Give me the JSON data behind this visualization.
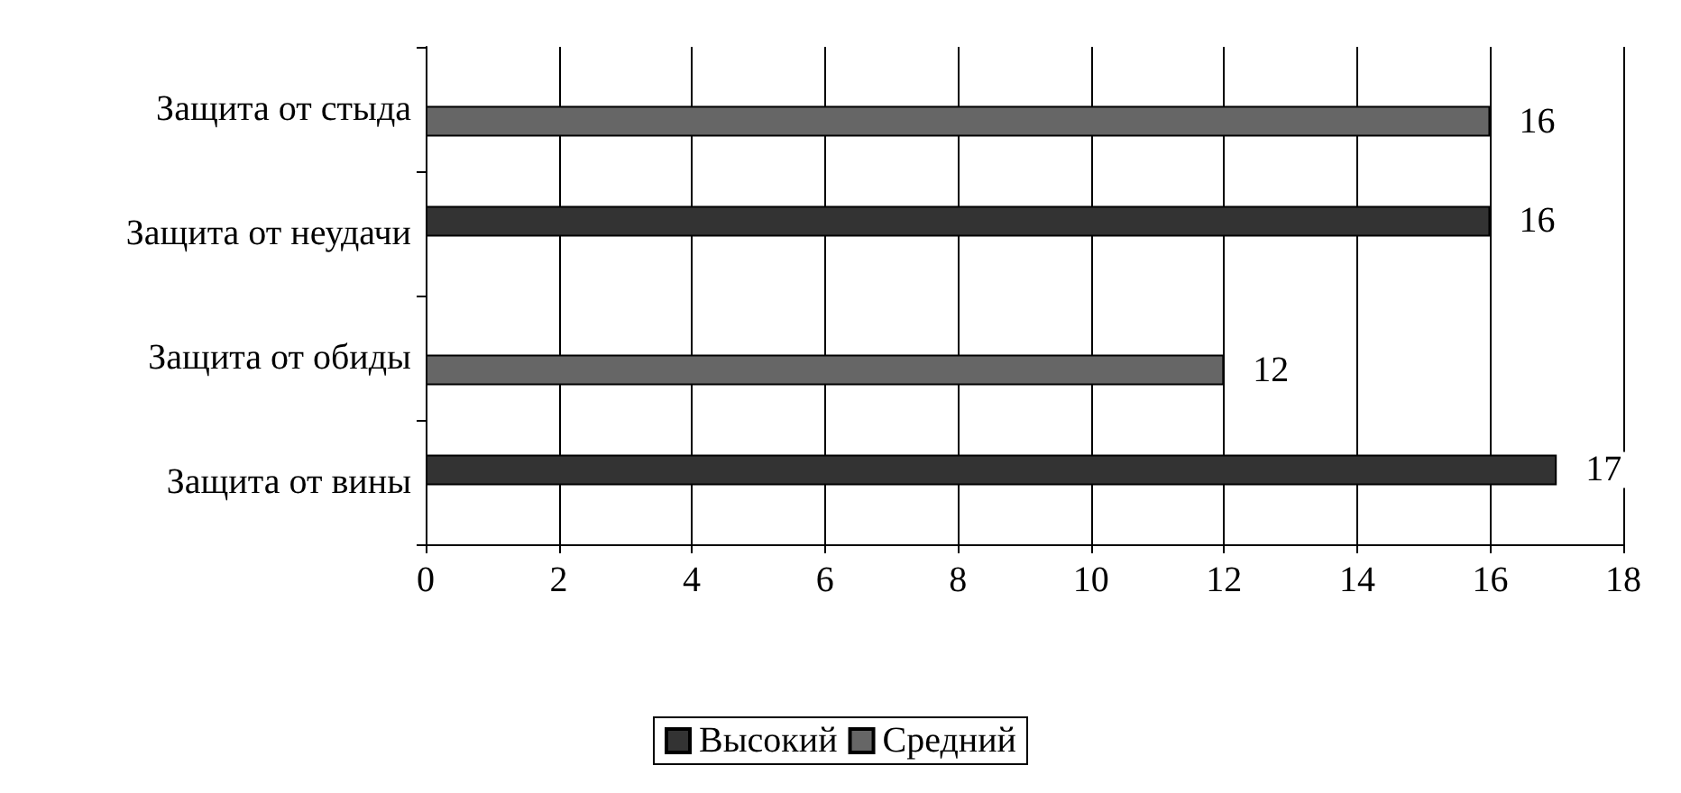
{
  "chart_data": {
    "type": "bar",
    "orientation": "horizontal",
    "categories": [
      "Защита от стыда",
      "Защита от неудачи",
      "Защита от обиды",
      "Защита от вины"
    ],
    "series": [
      {
        "name": "Высокий",
        "color": "#333333",
        "values": [
          null,
          16,
          null,
          17
        ]
      },
      {
        "name": "Средний",
        "color": "#666666",
        "values": [
          16,
          null,
          12,
          null
        ]
      }
    ],
    "xlim": [
      0,
      18
    ],
    "xticks": [
      0,
      2,
      4,
      6,
      8,
      10,
      12,
      14,
      16,
      18
    ],
    "grid": "x",
    "legend": "bottom",
    "data_labels": true
  }
}
